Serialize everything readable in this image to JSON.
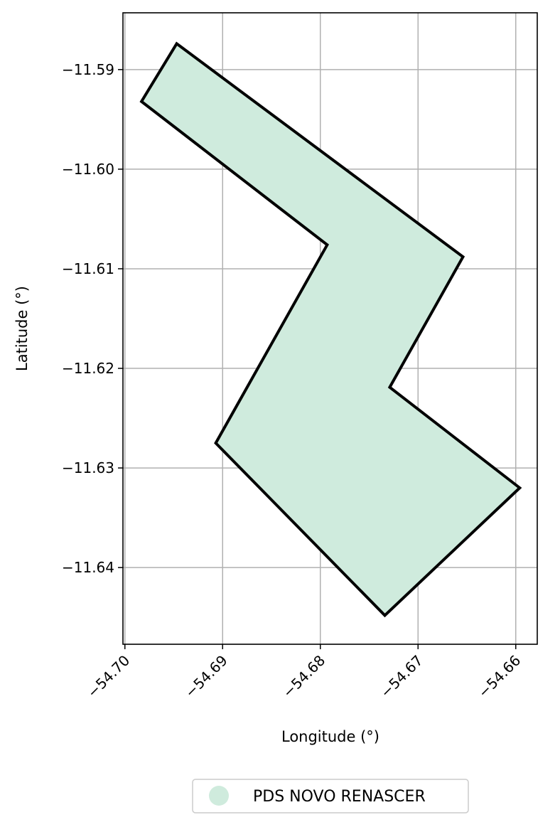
{
  "chart_data": {
    "type": "map-polygon",
    "xlabel": "Longitude (°)",
    "ylabel": "Latitude (°)",
    "xlim": [
      -54.7002,
      -54.6578
    ],
    "ylim": [
      -11.6477,
      -11.5843
    ],
    "xticks": [
      -54.7,
      -54.69,
      -54.68,
      -54.67,
      -54.66
    ],
    "xtick_labels": [
      "−54.70",
      "−54.69",
      "−54.68",
      "−54.67",
      "−54.66"
    ],
    "yticks": [
      -11.59,
      -11.6,
      -11.61,
      -11.62,
      -11.63,
      -11.64
    ],
    "ytick_labels": [
      "−11.59",
      "−11.60",
      "−11.61",
      "−11.62",
      "−11.63",
      "−11.64"
    ],
    "grid": true,
    "legend_position": "bottom-center",
    "series": [
      {
        "name": "PDS NOVO RENASCER",
        "fill_color": "#cfebdd",
        "edge_color": "#000000",
        "polygon": [
          [
            -54.6947,
            -11.5874
          ],
          [
            -54.6983,
            -11.5932
          ],
          [
            -54.6793,
            -11.6076
          ],
          [
            -54.6907,
            -11.6275
          ],
          [
            -54.6734,
            -11.6448
          ],
          [
            -54.6596,
            -11.632
          ],
          [
            -54.6729,
            -11.6219
          ],
          [
            -54.6654,
            -11.6088
          ],
          [
            -54.6947,
            -11.5874
          ]
        ]
      }
    ]
  }
}
